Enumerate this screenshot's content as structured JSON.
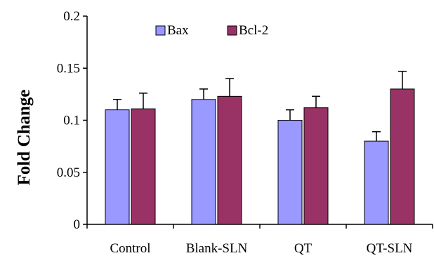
{
  "chart_data": {
    "type": "bar",
    "title": "",
    "xlabel": "",
    "ylabel": "Fold Change",
    "ylim": [
      0,
      0.2
    ],
    "yticks": [
      0,
      0.05,
      0.1,
      0.15,
      0.2
    ],
    "ytick_labels": [
      "0",
      "0.05",
      "0.1",
      "0.15",
      "0.2"
    ],
    "categories": [
      "Control",
      "Blank-SLN",
      "QT",
      "QT-SLN"
    ],
    "legend_position": "top-center",
    "grid": false,
    "series": [
      {
        "name": "Bax",
        "color": "#9999ff",
        "values": [
          0.11,
          0.12,
          0.1,
          0.08
        ],
        "errors": [
          0.01,
          0.01,
          0.01,
          0.009
        ]
      },
      {
        "name": "Bcl-2",
        "color": "#993366",
        "values": [
          0.111,
          0.123,
          0.112,
          0.13
        ],
        "errors": [
          0.015,
          0.017,
          0.011,
          0.017
        ]
      }
    ]
  }
}
